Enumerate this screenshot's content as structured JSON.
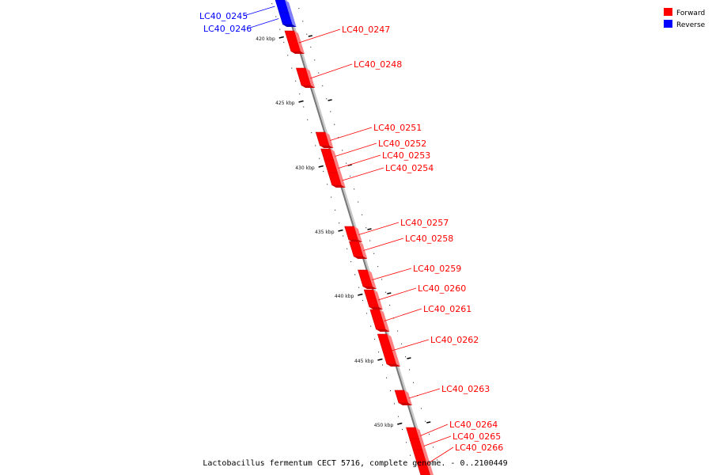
{
  "legend": {
    "forward_label": "Forward",
    "reverse_label": "Reverse",
    "forward_color": "#ff0000",
    "reverse_color": "#0000ff"
  },
  "caption": "Lactobacillus fermentum CECT 5716, complete genome. - 0..2100449",
  "ticks": [
    {
      "label": "420 kbp"
    },
    {
      "label": "425 kbp"
    },
    {
      "label": "430 kbp"
    },
    {
      "label": "435 kbp"
    },
    {
      "label": "440 kbp"
    },
    {
      "label": "445 kbp"
    },
    {
      "label": "450 kbp"
    }
  ],
  "genes": [
    {
      "name": "LC40_0245",
      "strand": "reverse"
    },
    {
      "name": "LC40_0246",
      "strand": "reverse"
    },
    {
      "name": "LC40_0247",
      "strand": "forward"
    },
    {
      "name": "LC40_0248",
      "strand": "forward"
    },
    {
      "name": "LC40_0251",
      "strand": "forward"
    },
    {
      "name": "LC40_0252",
      "strand": "forward"
    },
    {
      "name": "LC40_0253",
      "strand": "forward"
    },
    {
      "name": "LC40_0254",
      "strand": "forward"
    },
    {
      "name": "LC40_0257",
      "strand": "forward"
    },
    {
      "name": "LC40_0258",
      "strand": "forward"
    },
    {
      "name": "LC40_0259",
      "strand": "forward"
    },
    {
      "name": "LC40_0260",
      "strand": "forward"
    },
    {
      "name": "LC40_0261",
      "strand": "forward"
    },
    {
      "name": "LC40_0262",
      "strand": "forward"
    },
    {
      "name": "LC40_0263",
      "strand": "forward"
    },
    {
      "name": "LC40_0264",
      "strand": "forward"
    },
    {
      "name": "LC40_0265",
      "strand": "forward"
    },
    {
      "name": "LC40_0266",
      "strand": "forward"
    }
  ]
}
